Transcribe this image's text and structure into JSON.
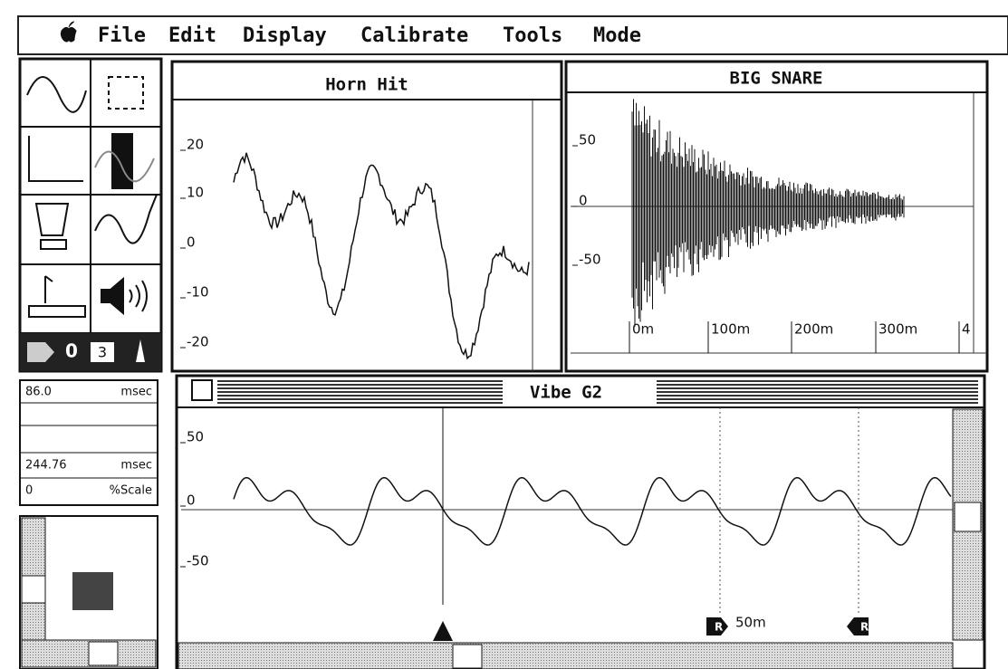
{
  "menu": [
    "File",
    "Edit",
    "Display",
    "Calibrate",
    "Tools",
    "Mode"
  ],
  "windows": [
    {
      "title": "Horn Hit",
      "axis_labels": [
        "20",
        "10",
        "0",
        "-10",
        "-20"
      ]
    },
    {
      "title": "BIG SNARE",
      "axis_labels": [
        "50",
        "0",
        "-50"
      ],
      "time_labels": [
        "0m",
        "100m",
        "200m",
        "300m",
        "4"
      ]
    },
    {
      "title": "Vibe G2",
      "axis_labels": [
        "50",
        "0",
        "-50"
      ],
      "marker_label": "50m",
      "markers": [
        "R",
        "R"
      ]
    }
  ],
  "fields": [
    {
      "value": "86.0",
      "unit": "msec"
    },
    {
      "value": "244.76",
      "unit": "msec"
    },
    {
      "value": "0",
      "unit": "%Scale"
    }
  ],
  "tool_palette": {
    "counter": "0",
    "number": "3"
  }
}
